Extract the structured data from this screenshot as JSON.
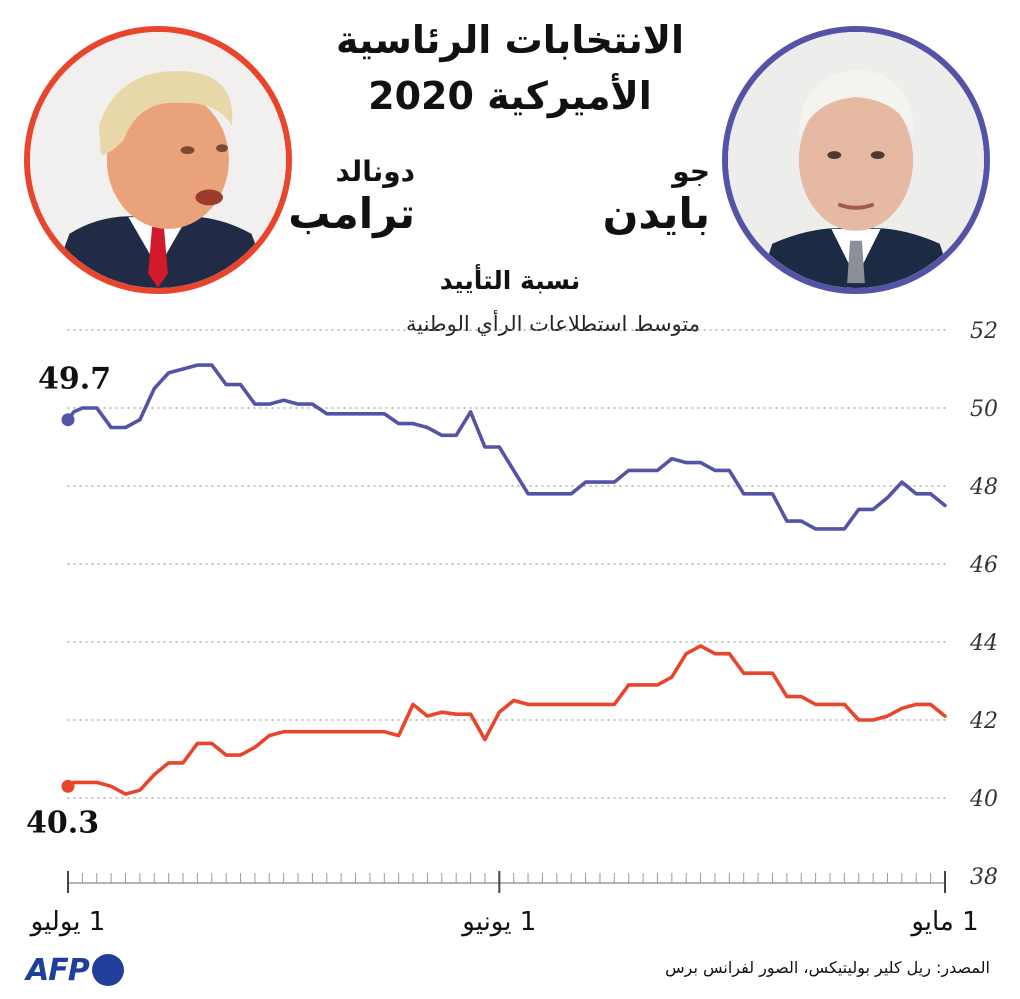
{
  "header": {
    "title_line1": "الانتخابات الرئاسية",
    "title_line2": "الأميركية 2020"
  },
  "candidates": {
    "biden": {
      "first": "جو",
      "last": "بايدن",
      "color": "#5453a6"
    },
    "trump": {
      "first": "دونالد",
      "last": "ترامب",
      "color": "#e8452c"
    }
  },
  "subtitle": "نسبة التأييد",
  "subnote": "متوسط استطلاعات الرأي الوطنية",
  "source": "المصدر: ريل كلير بوليتيكس، الصور لفرانس برس",
  "logo": {
    "text": "AFP"
  },
  "chart_data": {
    "type": "line",
    "x_direction": "right-to-left",
    "x_start": "1 مايو",
    "x_end": "1 يوليو",
    "x_tick_labels": [
      {
        "label": "1 مايو",
        "day": 0
      },
      {
        "label": "1 يونيو",
        "day": 31
      },
      {
        "label": "1 يوليو",
        "day": 61
      }
    ],
    "ylim": [
      38,
      52
    ],
    "y_ticks": [
      38,
      40,
      42,
      44,
      46,
      48,
      50,
      52
    ],
    "grid": true,
    "series": [
      {
        "name": "بايدن",
        "color": "#5453a6",
        "end_label": "49.7",
        "points": [
          [
            61,
            49.7
          ],
          [
            60.6,
            49.9
          ],
          [
            60,
            50.0
          ],
          [
            59,
            50.0
          ],
          [
            58,
            49.5
          ],
          [
            57,
            49.5
          ],
          [
            56,
            49.7
          ],
          [
            55,
            50.5
          ],
          [
            54,
            50.9
          ],
          [
            53,
            51.0
          ],
          [
            52,
            51.1
          ],
          [
            51,
            51.1
          ],
          [
            50,
            50.6
          ],
          [
            49,
            50.6
          ],
          [
            48,
            50.1
          ],
          [
            47,
            50.1
          ],
          [
            46,
            50.2
          ],
          [
            45,
            50.1
          ],
          [
            44,
            50.1
          ],
          [
            43,
            49.85
          ],
          [
            42,
            49.85
          ],
          [
            41,
            49.85
          ],
          [
            40,
            49.85
          ],
          [
            39,
            49.85
          ],
          [
            38,
            49.6
          ],
          [
            37,
            49.6
          ],
          [
            36,
            49.5
          ],
          [
            35,
            49.3
          ],
          [
            34,
            49.3
          ],
          [
            33,
            49.9
          ],
          [
            32,
            49.0
          ],
          [
            31,
            49.0
          ],
          [
            30,
            48.4
          ],
          [
            29,
            47.8
          ],
          [
            28,
            47.8
          ],
          [
            27,
            47.8
          ],
          [
            26,
            47.8
          ],
          [
            25,
            48.1
          ],
          [
            24,
            48.1
          ],
          [
            23,
            48.1
          ],
          [
            22,
            48.4
          ],
          [
            21,
            48.4
          ],
          [
            20,
            48.4
          ],
          [
            19,
            48.7
          ],
          [
            18,
            48.6
          ],
          [
            17,
            48.6
          ],
          [
            16,
            48.4
          ],
          [
            15,
            48.4
          ],
          [
            14,
            47.8
          ],
          [
            13,
            47.8
          ],
          [
            12,
            47.8
          ],
          [
            11,
            47.1
          ],
          [
            10,
            47.1
          ],
          [
            9,
            46.9
          ],
          [
            8,
            46.9
          ],
          [
            7,
            46.9
          ],
          [
            6,
            47.4
          ],
          [
            5,
            47.4
          ],
          [
            4,
            47.7
          ],
          [
            3,
            48.1
          ],
          [
            2,
            47.8
          ],
          [
            1,
            47.8
          ],
          [
            0,
            47.5
          ]
        ]
      },
      {
        "name": "ترامب",
        "color": "#e8452c",
        "end_label": "40.3",
        "points": [
          [
            61,
            40.3
          ],
          [
            60.6,
            40.4
          ],
          [
            60,
            40.4
          ],
          [
            59,
            40.4
          ],
          [
            58,
            40.3
          ],
          [
            57,
            40.1
          ],
          [
            56,
            40.2
          ],
          [
            55,
            40.6
          ],
          [
            54,
            40.9
          ],
          [
            53,
            40.9
          ],
          [
            52,
            41.4
          ],
          [
            51,
            41.4
          ],
          [
            50,
            41.1
          ],
          [
            49,
            41.1
          ],
          [
            48,
            41.3
          ],
          [
            47,
            41.6
          ],
          [
            46,
            41.7
          ],
          [
            45,
            41.7
          ],
          [
            44,
            41.7
          ],
          [
            43,
            41.7
          ],
          [
            42,
            41.7
          ],
          [
            41,
            41.7
          ],
          [
            40,
            41.7
          ],
          [
            39,
            41.7
          ],
          [
            38,
            41.6
          ],
          [
            37,
            42.4
          ],
          [
            36,
            42.1
          ],
          [
            35,
            42.2
          ],
          [
            34,
            42.15
          ],
          [
            33,
            42.15
          ],
          [
            32,
            41.5
          ],
          [
            31,
            42.2
          ],
          [
            30,
            42.5
          ],
          [
            29,
            42.4
          ],
          [
            28,
            42.4
          ],
          [
            27,
            42.4
          ],
          [
            26,
            42.4
          ],
          [
            25,
            42.4
          ],
          [
            24,
            42.4
          ],
          [
            23,
            42.4
          ],
          [
            22,
            42.9
          ],
          [
            21,
            42.9
          ],
          [
            20,
            42.9
          ],
          [
            19,
            43.1
          ],
          [
            18,
            43.7
          ],
          [
            17,
            43.9
          ],
          [
            16,
            43.7
          ],
          [
            15,
            43.7
          ],
          [
            14,
            43.2
          ],
          [
            13,
            43.2
          ],
          [
            12,
            43.2
          ],
          [
            11,
            42.6
          ],
          [
            10,
            42.6
          ],
          [
            9,
            42.4
          ],
          [
            8,
            42.4
          ],
          [
            7,
            42.4
          ],
          [
            6,
            42.0
          ],
          [
            5,
            42.0
          ],
          [
            4,
            42.1
          ],
          [
            3,
            42.3
          ],
          [
            2,
            42.4
          ],
          [
            1,
            42.4
          ],
          [
            0,
            42.1
          ]
        ]
      }
    ]
  }
}
